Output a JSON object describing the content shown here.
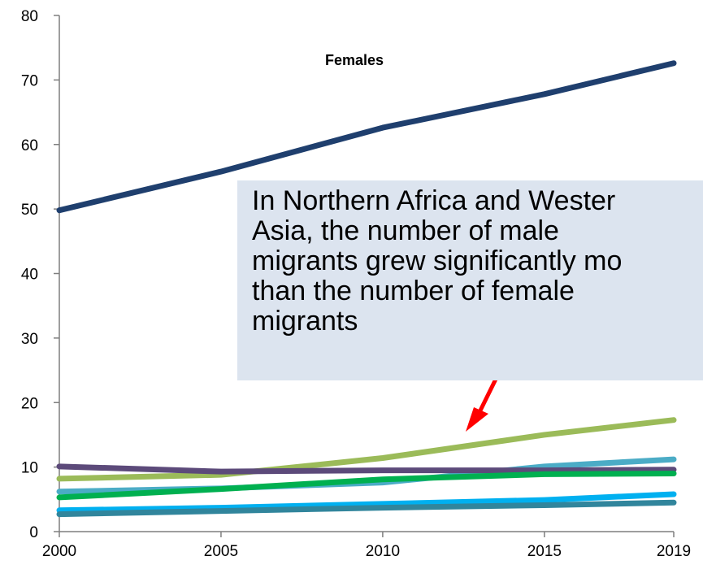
{
  "chart_data": {
    "type": "line",
    "title": "Females",
    "xlabel": "",
    "ylabel": "",
    "x": [
      2000,
      2005,
      2010,
      2015,
      2019
    ],
    "x_ticks": [
      "2000",
      "2005",
      "2010",
      "2015",
      "2019"
    ],
    "ylim": [
      0,
      80
    ],
    "y_ticks": [
      "0",
      "10",
      "20",
      "30",
      "40",
      "50",
      "60",
      "70",
      "80"
    ],
    "grid": false,
    "legend": "none",
    "series": [
      {
        "color": "#1f3f6e",
        "values": [
          49.8,
          55.8,
          62.6,
          67.8,
          72.6
        ]
      },
      {
        "color": "#9bbb59",
        "values": [
          8.2,
          8.8,
          11.4,
          15.0,
          17.3
        ]
      },
      {
        "color": "#4bacc6",
        "values": [
          6.2,
          6.7,
          7.6,
          10.1,
          11.2
        ]
      },
      {
        "color": "#5c4a7a",
        "values": [
          10.1,
          9.3,
          9.5,
          9.5,
          9.6
        ]
      },
      {
        "color": "#00b050",
        "values": [
          5.3,
          6.6,
          8.1,
          8.9,
          9.0
        ]
      },
      {
        "color": "#00b0f0",
        "values": [
          3.3,
          3.7,
          4.3,
          4.9,
          5.8
        ]
      },
      {
        "color": "#31859c",
        "values": [
          2.7,
          3.2,
          3.7,
          4.1,
          4.5
        ]
      }
    ],
    "annotation": {
      "lines": [
        "In Northern Africa and Wester",
        "Asia, the number of male",
        "migrants grew significantly mo",
        "than the number of female",
        "migrants"
      ],
      "arrow_color": "#ff0000"
    }
  }
}
